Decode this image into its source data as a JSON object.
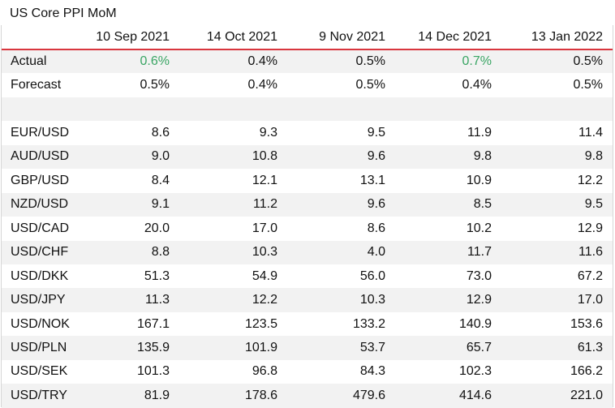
{
  "title": "US Core PPI MoM",
  "columns": [
    "",
    "10 Sep 2021",
    "14 Oct 2021",
    "9 Nov 2021",
    "14 Dec 2021",
    "13 Jan 2022"
  ],
  "colors": {
    "accent_line": "#d9363e",
    "positive": "#3aa564",
    "stripe": "#f2f2f2"
  },
  "rows": [
    {
      "label": "Actual",
      "values": [
        "0.6%",
        "0.4%",
        "0.5%",
        "0.7%",
        "0.5%"
      ],
      "highlight": [
        true,
        false,
        false,
        true,
        false
      ]
    },
    {
      "label": "Forecast",
      "values": [
        "0.5%",
        "0.4%",
        "0.5%",
        "0.4%",
        "0.5%"
      ],
      "highlight": [
        false,
        false,
        false,
        false,
        false
      ]
    },
    {
      "label": "",
      "values": [
        "",
        "",
        "",
        "",
        ""
      ],
      "highlight": [
        false,
        false,
        false,
        false,
        false
      ]
    },
    {
      "label": "EUR/USD",
      "values": [
        "8.6",
        "9.3",
        "9.5",
        "11.9",
        "11.4"
      ],
      "highlight": [
        false,
        false,
        false,
        false,
        false
      ]
    },
    {
      "label": "AUD/USD",
      "values": [
        "9.0",
        "10.8",
        "9.6",
        "9.8",
        "9.8"
      ],
      "highlight": [
        false,
        false,
        false,
        false,
        false
      ]
    },
    {
      "label": "GBP/USD",
      "values": [
        "8.4",
        "12.1",
        "13.1",
        "10.9",
        "12.2"
      ],
      "highlight": [
        false,
        false,
        false,
        false,
        false
      ]
    },
    {
      "label": "NZD/USD",
      "values": [
        "9.1",
        "11.2",
        "9.6",
        "8.5",
        "9.5"
      ],
      "highlight": [
        false,
        false,
        false,
        false,
        false
      ]
    },
    {
      "label": "USD/CAD",
      "values": [
        "20.0",
        "17.0",
        "8.6",
        "10.2",
        "12.9"
      ],
      "highlight": [
        false,
        false,
        false,
        false,
        false
      ]
    },
    {
      "label": "USD/CHF",
      "values": [
        "8.8",
        "10.3",
        "4.0",
        "11.7",
        "11.6"
      ],
      "highlight": [
        false,
        false,
        false,
        false,
        false
      ]
    },
    {
      "label": "USD/DKK",
      "values": [
        "51.3",
        "54.9",
        "56.0",
        "73.0",
        "67.2"
      ],
      "highlight": [
        false,
        false,
        false,
        false,
        false
      ]
    },
    {
      "label": "USD/JPY",
      "values": [
        "11.3",
        "12.2",
        "10.3",
        "12.9",
        "17.0"
      ],
      "highlight": [
        false,
        false,
        false,
        false,
        false
      ]
    },
    {
      "label": "USD/NOK",
      "values": [
        "167.1",
        "123.5",
        "133.2",
        "140.9",
        "153.6"
      ],
      "highlight": [
        false,
        false,
        false,
        false,
        false
      ]
    },
    {
      "label": "USD/PLN",
      "values": [
        "135.9",
        "101.9",
        "53.7",
        "65.7",
        "61.3"
      ],
      "highlight": [
        false,
        false,
        false,
        false,
        false
      ]
    },
    {
      "label": "USD/SEK",
      "values": [
        "101.3",
        "96.8",
        "84.3",
        "102.3",
        "166.2"
      ],
      "highlight": [
        false,
        false,
        false,
        false,
        false
      ]
    },
    {
      "label": "USD/TRY",
      "values": [
        "81.9",
        "178.6",
        "479.6",
        "414.6",
        "221.0"
      ],
      "highlight": [
        false,
        false,
        false,
        false,
        false
      ]
    }
  ]
}
